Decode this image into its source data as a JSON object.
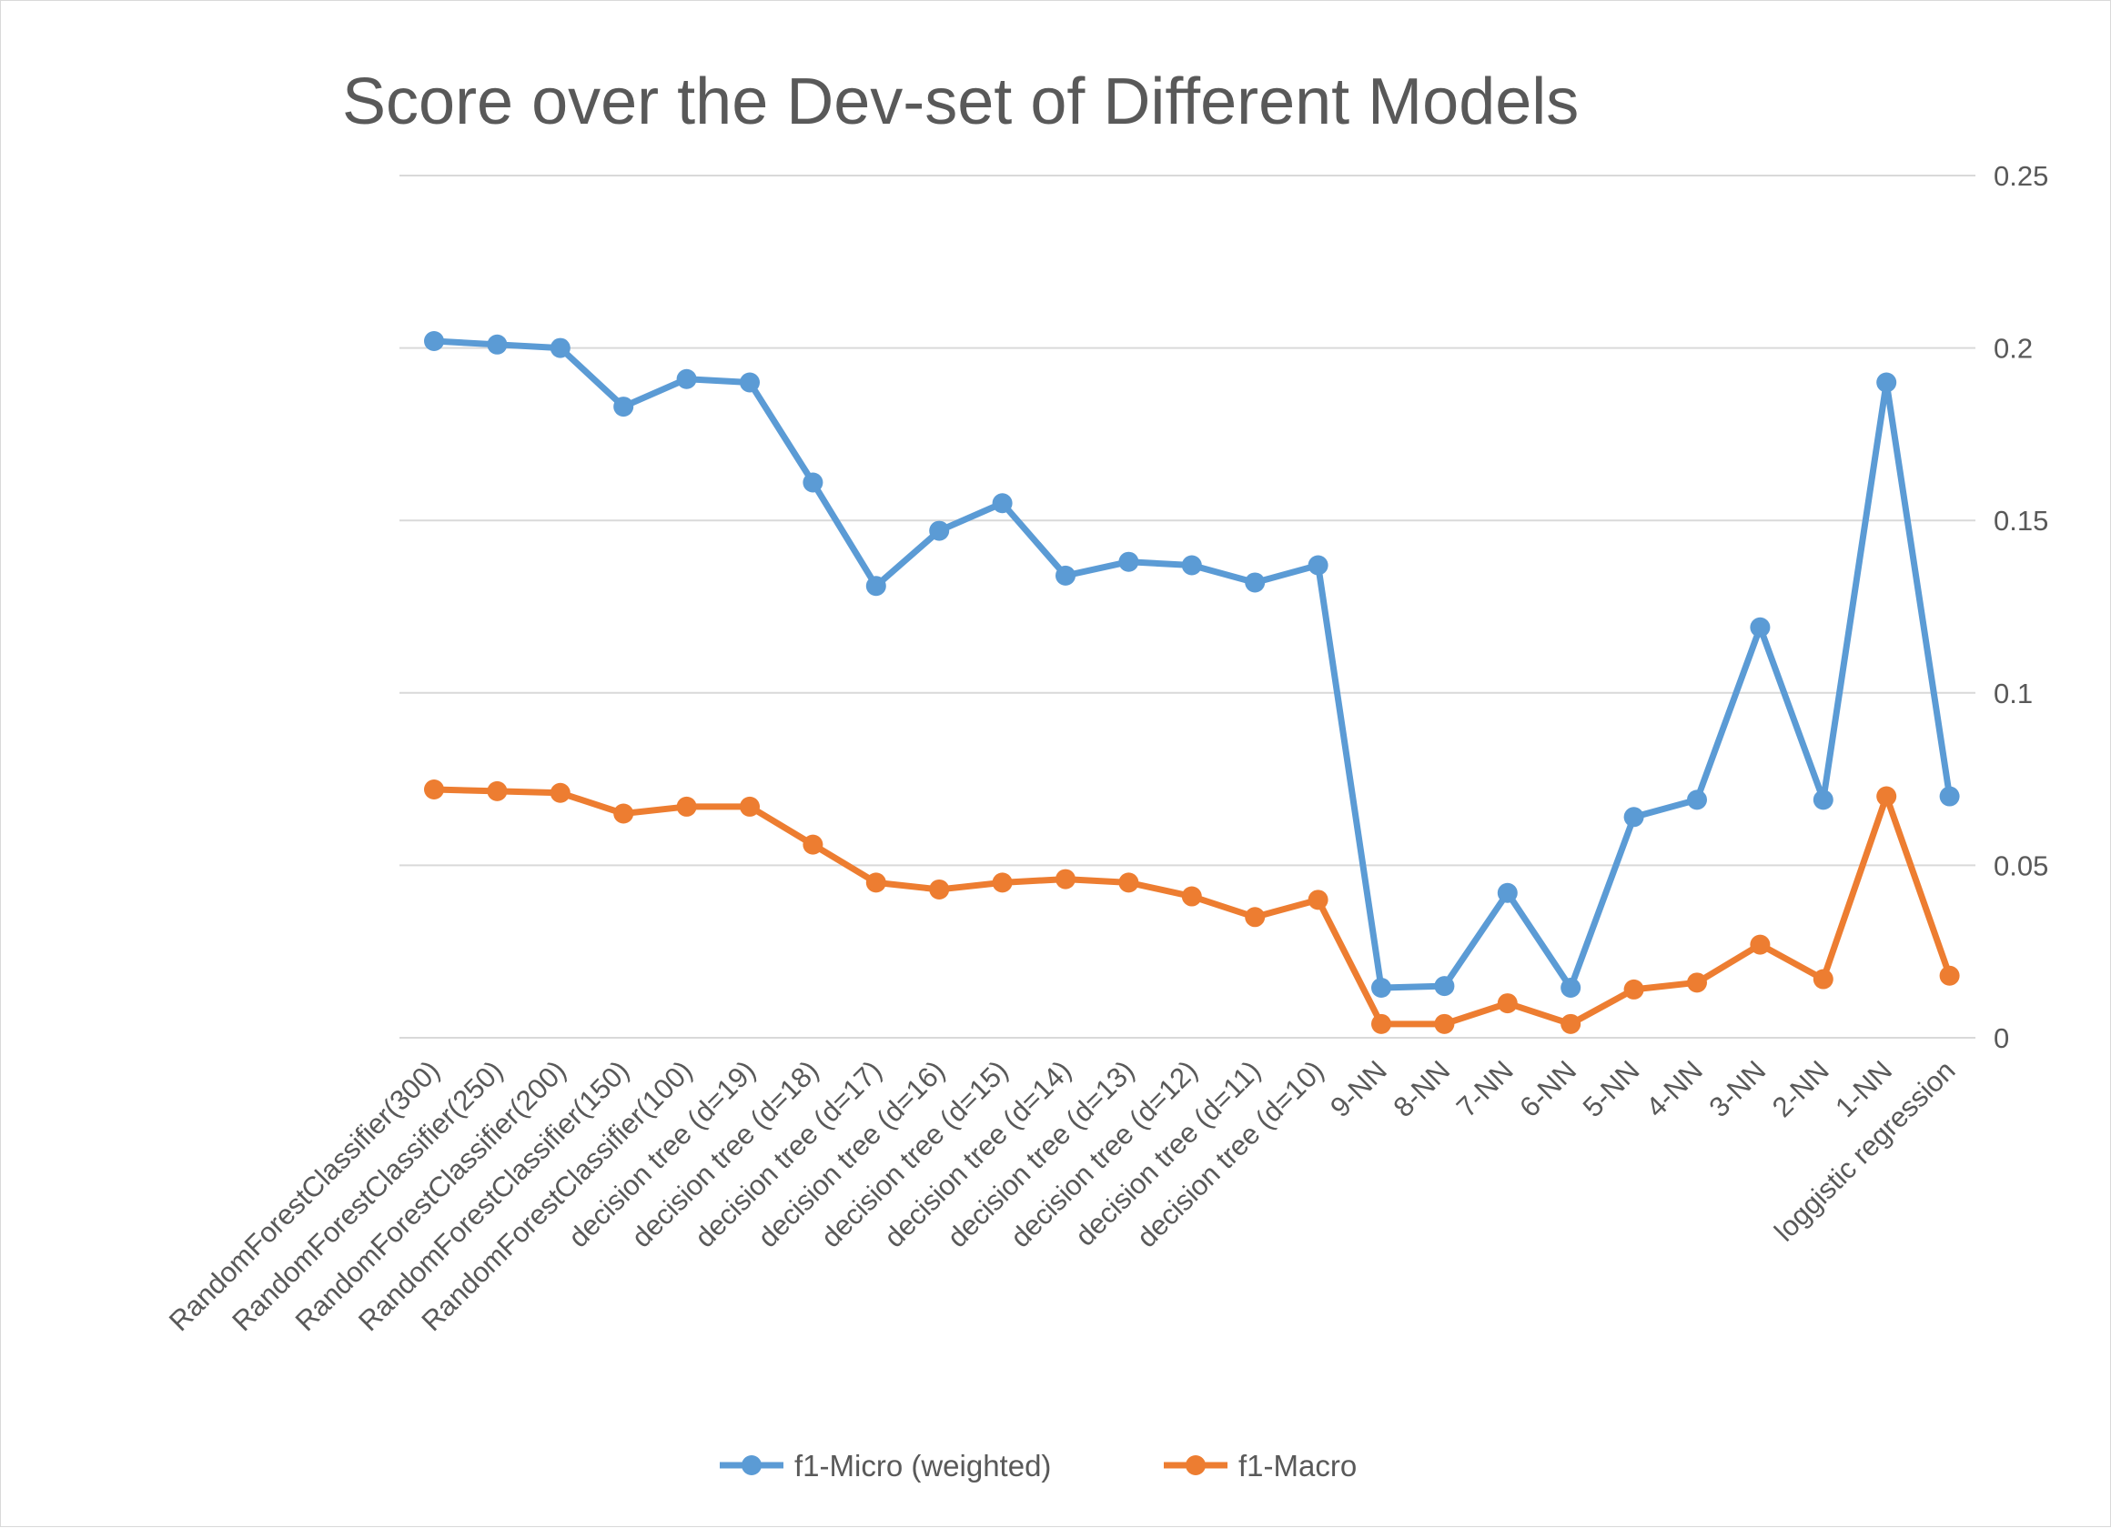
{
  "chart_data": {
    "type": "line",
    "title": "Score over the Dev-set of Different Models",
    "xlabel": "",
    "ylabel": "",
    "ylim": [
      0,
      0.25
    ],
    "y_ticks": [
      "0",
      "0.05",
      "0.1",
      "0.15",
      "0.2",
      "0.25"
    ],
    "y_axis_side": "right",
    "grid": true,
    "legend_position": "bottom",
    "categories": [
      "RandomForestClassifier(300)",
      "RandomForestClassifier(250)",
      "RandomForestClassifier(200)",
      "RandomForestClassifier(150)",
      "RandomForestClassifier(100)",
      "decision tree (d=19)",
      "decision tree (d=18)",
      "decision tree (d=17)",
      "decision tree (d=16)",
      "decision tree (d=15)",
      "decision tree (d=14)",
      "decision tree (d=13)",
      "decision tree (d=12)",
      "decision tree (d=11)",
      "decision tree (d=10)",
      "9-NN",
      "8-NN",
      "7-NN",
      "6-NN",
      "5-NN",
      "4-NN",
      "3-NN",
      "2-NN",
      "1-NN",
      "loggistic regression"
    ],
    "series": [
      {
        "name": "f1-Micro (weighted)",
        "color": "#5b9bd5",
        "values": [
          0.202,
          0.201,
          0.2,
          0.183,
          0.191,
          0.19,
          0.161,
          0.131,
          0.147,
          0.155,
          0.134,
          0.138,
          0.137,
          0.132,
          0.137,
          0.0145,
          0.015,
          0.042,
          0.0145,
          0.064,
          0.069,
          0.119,
          0.069,
          0.19,
          0.07
        ]
      },
      {
        "name": "f1-Macro",
        "color": "#ed7d31",
        "values": [
          0.072,
          0.0715,
          0.071,
          0.065,
          0.067,
          0.067,
          0.056,
          0.045,
          0.043,
          0.045,
          0.046,
          0.045,
          0.041,
          0.035,
          0.04,
          0.004,
          0.004,
          0.01,
          0.004,
          0.014,
          0.016,
          0.027,
          0.017,
          0.07,
          0.018
        ]
      }
    ]
  }
}
